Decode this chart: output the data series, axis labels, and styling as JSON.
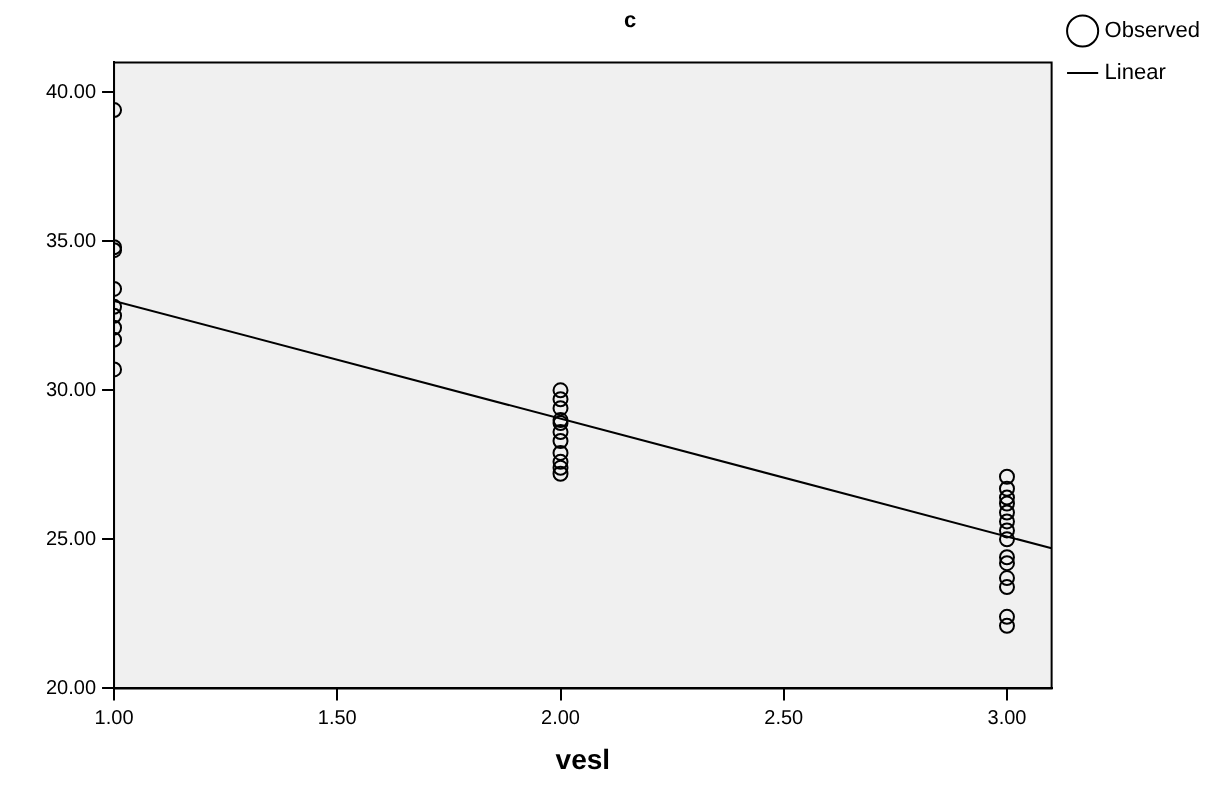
{
  "chart_data": {
    "type": "scatter",
    "title": "c",
    "xlabel": "vesl",
    "xlim": [
      1,
      3.1
    ],
    "ylim": [
      20,
      41
    ],
    "xticks": [
      {
        "value": 1,
        "label": "1.00"
      },
      {
        "value": 1.5,
        "label": "1.50"
      },
      {
        "value": 2,
        "label": "2.00"
      },
      {
        "value": 2.5,
        "label": "2.50"
      },
      {
        "value": 3,
        "label": "3.00"
      }
    ],
    "yticks": [
      {
        "value": 20,
        "label": "20.00"
      },
      {
        "value": 25,
        "label": "25.00"
      },
      {
        "value": 30,
        "label": "30.00"
      },
      {
        "value": 35,
        "label": "35.00"
      },
      {
        "value": 40,
        "label": "40.00"
      }
    ],
    "grid": false,
    "legend": "top right",
    "marker": "circle",
    "series": [
      {
        "name": "Observed",
        "type": "scatter",
        "color": "#000000",
        "x": [
          1,
          1,
          1,
          1,
          1,
          1,
          1,
          1,
          1,
          2,
          2,
          2,
          2,
          2,
          2,
          2,
          2,
          2,
          2,
          2,
          3,
          3,
          3,
          3,
          3,
          3,
          3,
          3,
          3,
          3,
          3,
          3,
          3,
          3
        ],
        "values": [
          39.4,
          34.8,
          34.7,
          33.4,
          32.8,
          32.5,
          32.1,
          31.7,
          30.7,
          30.0,
          29.7,
          29.4,
          29.0,
          28.9,
          28.6,
          28.3,
          27.9,
          27.6,
          27.4,
          27.2,
          27.1,
          26.7,
          26.4,
          26.2,
          25.9,
          25.6,
          25.3,
          25.0,
          24.4,
          24.2,
          23.7,
          23.4,
          22.4,
          22.1
        ]
      },
      {
        "name": "Linear",
        "type": "line",
        "color": "#000000",
        "line_style": "solid",
        "marker": "none",
        "x": [
          1,
          3.1
        ],
        "values": [
          33.0,
          24.7
        ]
      }
    ]
  }
}
